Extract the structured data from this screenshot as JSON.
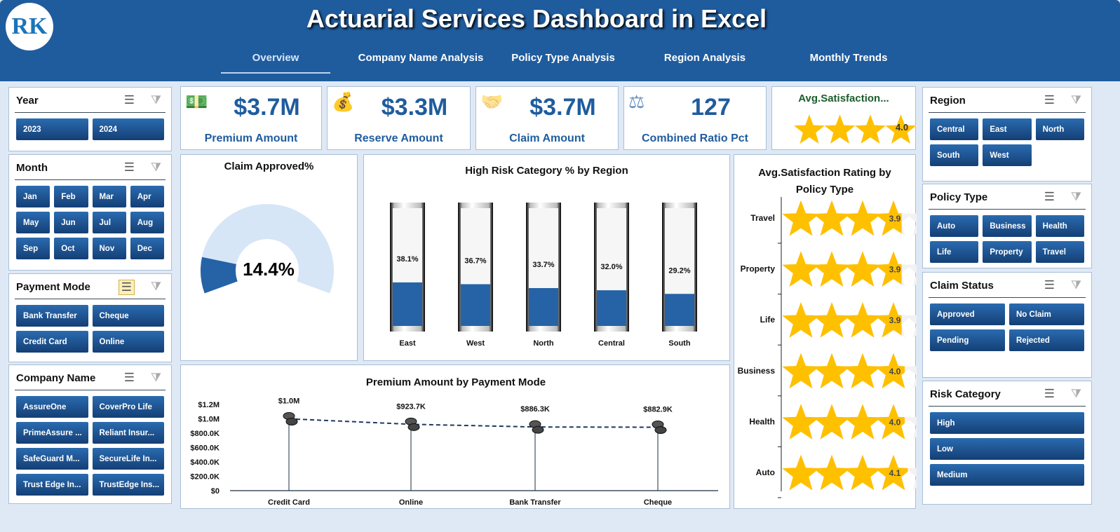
{
  "header": {
    "title": "Actuarial Services Dashboard in Excel",
    "logo_text": "RK",
    "tabs": [
      "Overview",
      "Company Name Analysis",
      "Policy Type Analysis",
      "Region Analysis",
      "Monthly Trends"
    ],
    "active_tab": "Overview"
  },
  "slicers_left": [
    {
      "title": "Year",
      "items": [
        "2023",
        "2024"
      ]
    },
    {
      "title": "Month",
      "items": [
        "Jan",
        "Feb",
        "Mar",
        "Apr",
        "May",
        "Jun",
        "Jul",
        "Aug",
        "Sep",
        "Oct",
        "Nov",
        "Dec"
      ]
    },
    {
      "title": "Payment Mode",
      "items": [
        "Bank Transfer",
        "Cheque",
        "Credit Card",
        "Online"
      ]
    },
    {
      "title": "Company Name",
      "items": [
        "AssureOne",
        "CoverPro Life",
        "PrimeAssure ...",
        "Reliant Insur...",
        "SafeGuard M...",
        "SecureLife In...",
        "Trust Edge In...",
        "TrustEdge Ins..."
      ]
    }
  ],
  "slicers_right": [
    {
      "title": "Region",
      "items": [
        "Central",
        "East",
        "North",
        "South",
        "West"
      ]
    },
    {
      "title": "Policy Type",
      "items": [
        "Auto",
        "Business",
        "Health",
        "Life",
        "Property",
        "Travel"
      ]
    },
    {
      "title": "Claim Status",
      "items": [
        "Approved",
        "No Claim",
        "Pending",
        "Rejected"
      ]
    },
    {
      "title": "Risk Category",
      "items": [
        "High",
        "Low",
        "Medium"
      ]
    }
  ],
  "kpis": [
    {
      "value": "$3.7M",
      "label": "Premium Amount",
      "icon": "cash-hand-icon"
    },
    {
      "value": "$3.3M",
      "label": "Reserve Amount",
      "icon": "money-bag-icon"
    },
    {
      "value": "$3.7M",
      "label": "Claim Amount",
      "icon": "handshake-icon"
    },
    {
      "value": "127",
      "label": "Combined Ratio Pct",
      "icon": "scale-icon"
    }
  ],
  "avg_satisfaction": {
    "title": "Avg.Satisfaction...",
    "value": "4.0",
    "rating": 4.0
  },
  "colors": {
    "header": "#1f5c9e",
    "accent": "#2563a6",
    "star": "#ffc000",
    "donut_bg": "#d6e6f7"
  },
  "chart_data": [
    {
      "type": "pie",
      "title": "Claim Approved%",
      "values": [
        14.4
      ],
      "label": "14.4%"
    },
    {
      "type": "bar",
      "title": "High Risk Category % by Region",
      "categories": [
        "East",
        "West",
        "North",
        "Central",
        "South"
      ],
      "values": [
        38.1,
        36.7,
        33.7,
        32.0,
        29.2
      ],
      "labels": [
        "38.1%",
        "36.7%",
        "33.7%",
        "32.0%",
        "29.2%"
      ],
      "ylim": [
        0,
        100
      ]
    },
    {
      "type": "bar",
      "title": "Avg.Satisfaction Rating by Policy Type",
      "categories": [
        "Travel",
        "Property",
        "Life",
        "Business",
        "Health",
        "Auto"
      ],
      "values": [
        3.9,
        3.9,
        3.9,
        4.0,
        4.0,
        4.1
      ],
      "labels": [
        "3.9",
        "3.9",
        "3.9",
        "4.0",
        "4.0",
        "4.1"
      ],
      "xlim": [
        0,
        5
      ]
    },
    {
      "type": "line",
      "title": "Premium Amount by Payment Mode",
      "categories": [
        "Credit Card",
        "Online",
        "Bank Transfer",
        "Cheque"
      ],
      "values": [
        1000000,
        923700,
        886300,
        882900
      ],
      "labels": [
        "$1.0M",
        "$923.7K",
        "$886.3K",
        "$882.9K"
      ],
      "ylim": [
        0,
        1200000
      ],
      "yticks": [
        "$0",
        "$200.0K",
        "$400.0K",
        "$600.0K",
        "$800.0K",
        "$1.0M",
        "$1.2M"
      ]
    }
  ]
}
